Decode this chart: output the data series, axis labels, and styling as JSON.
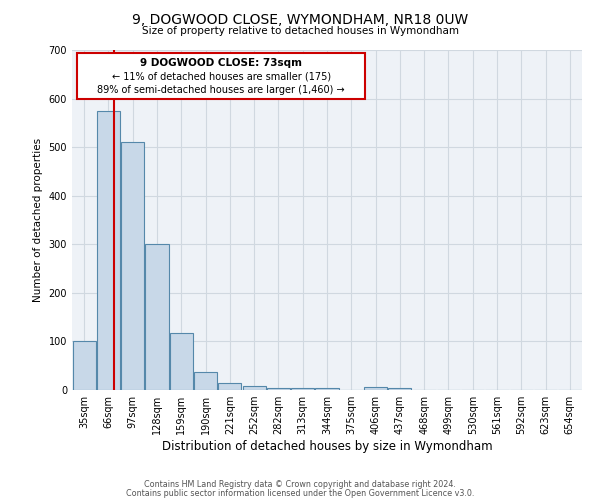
{
  "title": "9, DOGWOOD CLOSE, WYMONDHAM, NR18 0UW",
  "subtitle": "Size of property relative to detached houses in Wymondham",
  "xlabel": "Distribution of detached houses by size in Wymondham",
  "ylabel": "Number of detached properties",
  "footnote1": "Contains HM Land Registry data © Crown copyright and database right 2024.",
  "footnote2": "Contains public sector information licensed under the Open Government Licence v3.0.",
  "annotation_line1": "9 DOGWOOD CLOSE: 73sqm",
  "annotation_line2": "← 11% of detached houses are smaller (175)",
  "annotation_line3": "89% of semi-detached houses are larger (1,460) →",
  "bin_labels": [
    "35sqm",
    "66sqm",
    "97sqm",
    "128sqm",
    "159sqm",
    "190sqm",
    "221sqm",
    "252sqm",
    "282sqm",
    "313sqm",
    "344sqm",
    "375sqm",
    "406sqm",
    "437sqm",
    "468sqm",
    "499sqm",
    "530sqm",
    "561sqm",
    "592sqm",
    "623sqm",
    "654sqm"
  ],
  "bar_heights": [
    100,
    575,
    510,
    300,
    117,
    37,
    15,
    8,
    5,
    5,
    5,
    0,
    7,
    5,
    0,
    0,
    0,
    0,
    0,
    0,
    0
  ],
  "bar_color": "#c8d8e8",
  "bar_edge_color": "#5588aa",
  "property_line_color": "#cc0000",
  "annotation_box_color": "#cc0000",
  "ylim": [
    0,
    700
  ],
  "yticks": [
    0,
    100,
    200,
    300,
    400,
    500,
    600,
    700
  ],
  "grid_color": "#d0d8e0",
  "background_color": "#ffffff",
  "plot_bg_color": "#eef2f7"
}
